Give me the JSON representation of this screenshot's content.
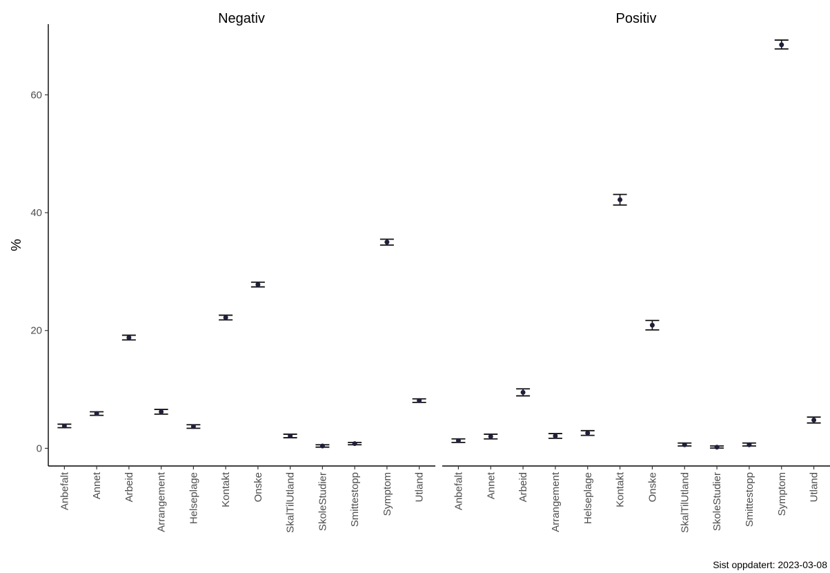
{
  "chart_data": {
    "type": "errorbar",
    "ylabel": "%",
    "ylim": [
      -3,
      72
    ],
    "yticks": [
      0,
      20,
      40,
      60
    ],
    "categories": [
      "Anbefalt",
      "Annet",
      "Arbeid",
      "Arrangement",
      "Helseplage",
      "Kontakt",
      "Onske",
      "SkalTilUtland",
      "SkoleStudier",
      "Smittestopp",
      "Symptom",
      "Utland"
    ],
    "panels": [
      {
        "title": "Negativ",
        "values": [
          3.8,
          5.9,
          18.8,
          6.2,
          3.7,
          22.2,
          27.8,
          2.1,
          0.4,
          0.8,
          35.0,
          8.1
        ],
        "lower": [
          3.5,
          5.6,
          18.4,
          5.8,
          3.4,
          21.8,
          27.4,
          1.8,
          0.2,
          0.6,
          34.5,
          7.8
        ],
        "upper": [
          4.1,
          6.2,
          19.2,
          6.6,
          4.0,
          22.6,
          28.2,
          2.4,
          0.6,
          1.0,
          35.5,
          8.4
        ]
      },
      {
        "title": "Positiv",
        "values": [
          1.3,
          2.0,
          9.5,
          2.1,
          2.6,
          42.2,
          20.9,
          0.6,
          0.2,
          0.6,
          68.5,
          4.8
        ],
        "lower": [
          1.0,
          1.6,
          8.9,
          1.7,
          2.2,
          41.3,
          20.1,
          0.4,
          0.05,
          0.4,
          67.8,
          4.3
        ],
        "upper": [
          1.6,
          2.4,
          10.1,
          2.5,
          3.0,
          43.1,
          21.7,
          0.9,
          0.4,
          0.9,
          69.3,
          5.3
        ]
      }
    ],
    "caption": "Sist oppdatert: 2023-03-08",
    "grid": false,
    "legend": "none"
  }
}
